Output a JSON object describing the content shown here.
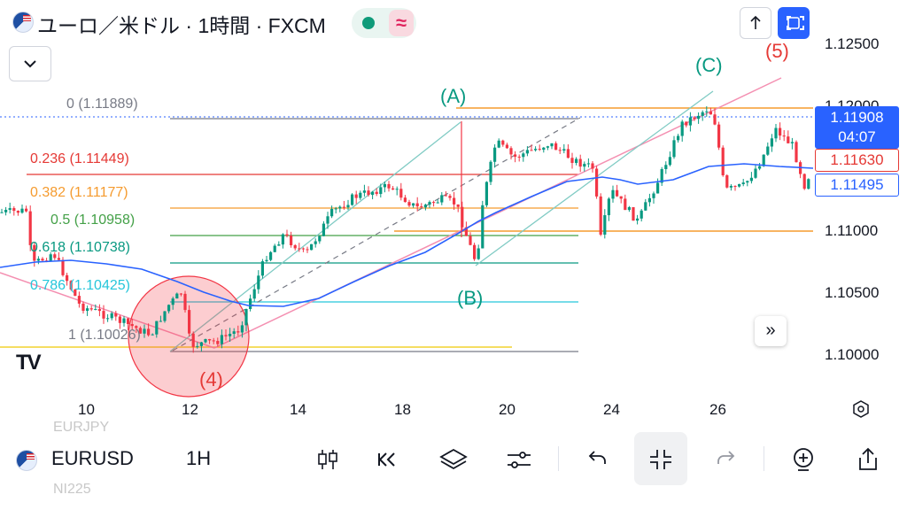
{
  "header": {
    "title": "ユーロ／米ドル · 1時間 · FXCM",
    "flag_icon": "eu-us-flag-icon",
    "market_status_icon": "green-dot-icon",
    "pine_icon": "≈"
  },
  "colors": {
    "up": "#089981",
    "down": "#f23645",
    "blue_ma": "#2962ff",
    "accent": "#2962ff"
  },
  "price_axis": [
    "1.12500",
    "1.12000",
    "1.11000",
    "1.10500",
    "1.10000"
  ],
  "price_badges": {
    "last_price": "1.11908",
    "countdown": "04:07",
    "red_level": "1.11630",
    "blue_level": "1.11495"
  },
  "time_axis": [
    "10",
    "12",
    "14",
    "18",
    "20",
    "24",
    "26"
  ],
  "fib_levels": [
    {
      "label": "0 (1.11889)"
    },
    {
      "label": "0.236 (1.11449)"
    },
    {
      "label": "0.382 (1.11177)"
    },
    {
      "label": "0.5 (1.10958)"
    },
    {
      "label": "0.618 (1.10738)"
    },
    {
      "label": "0.786 (1.10425)"
    },
    {
      "label": "1 (1.10026)"
    }
  ],
  "wave_labels": [
    "(A)",
    "(B)",
    "(C)",
    "(4)",
    "(5)"
  ],
  "logo": "TV",
  "scroll_btn": "»",
  "bottom": {
    "symbol": "EURUSD",
    "timeframe": "1H",
    "ghost_above": "EURJPY",
    "ghost_below": "NI225"
  },
  "toolbar_icons": [
    "candles-icon",
    "replay-icon",
    "layers-icon",
    "settings-sliders-icon",
    "undo-icon",
    "collapse-icon",
    "redo-icon",
    "add-alert-icon",
    "share-icon"
  ]
}
